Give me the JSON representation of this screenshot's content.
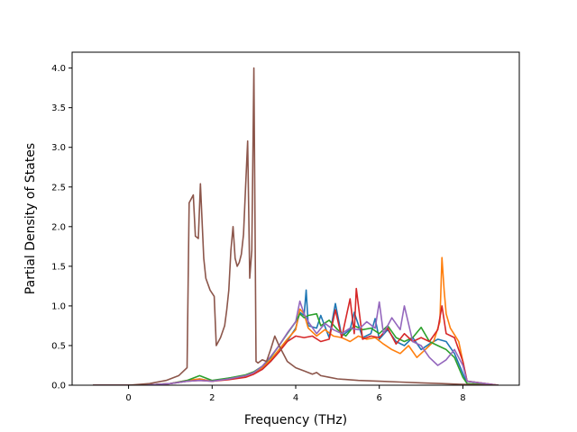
{
  "chart_data": {
    "type": "line",
    "title": "",
    "xlabel": "Frequency (THz)",
    "ylabel": "Partial Density of States",
    "xlim": [
      -1.35,
      9.35
    ],
    "ylim": [
      0,
      4.2
    ],
    "grid": false,
    "legend": "none",
    "xticks": [
      0,
      2,
      4,
      6,
      8
    ],
    "xtick_labels": [
      "0",
      "2",
      "4",
      "6",
      "8"
    ],
    "yticks": [
      0,
      0.5,
      1.0,
      1.5,
      2.0,
      2.5,
      3.0,
      3.5,
      4.0
    ],
    "ytick_labels": [
      "0.0",
      "0.5",
      "1.0",
      "1.5",
      "2.0",
      "2.5",
      "3.0",
      "3.5",
      "4.0"
    ],
    "series": [
      {
        "color": "#1f77b4",
        "points": [
          [
            -0.85,
            0
          ],
          [
            0.4,
            0
          ],
          [
            1.0,
            0.02
          ],
          [
            1.4,
            0.05
          ],
          [
            1.7,
            0.08
          ],
          [
            2.0,
            0.05
          ],
          [
            2.4,
            0.09
          ],
          [
            2.8,
            0.12
          ],
          [
            3.0,
            0.16
          ],
          [
            3.2,
            0.2
          ],
          [
            3.4,
            0.3
          ],
          [
            3.6,
            0.42
          ],
          [
            3.8,
            0.56
          ],
          [
            4.0,
            0.72
          ],
          [
            4.1,
            0.92
          ],
          [
            4.2,
            0.88
          ],
          [
            4.25,
            1.2
          ],
          [
            4.3,
            0.75
          ],
          [
            4.5,
            0.72
          ],
          [
            4.6,
            0.88
          ],
          [
            4.8,
            0.6
          ],
          [
            4.95,
            1.03
          ],
          [
            5.1,
            0.62
          ],
          [
            5.3,
            0.7
          ],
          [
            5.4,
            0.92
          ],
          [
            5.6,
            0.6
          ],
          [
            5.8,
            0.65
          ],
          [
            5.9,
            0.84
          ],
          [
            6.0,
            0.58
          ],
          [
            6.2,
            0.7
          ],
          [
            6.4,
            0.55
          ],
          [
            6.6,
            0.5
          ],
          [
            6.8,
            0.6
          ],
          [
            7.0,
            0.45
          ],
          [
            7.2,
            0.52
          ],
          [
            7.4,
            0.58
          ],
          [
            7.6,
            0.55
          ],
          [
            7.8,
            0.4
          ],
          [
            8.0,
            0.15
          ],
          [
            8.1,
            0.02
          ],
          [
            8.85,
            0
          ]
        ]
      },
      {
        "color": "#ff7f0e",
        "points": [
          [
            -0.85,
            0
          ],
          [
            0.4,
            0
          ],
          [
            1.0,
            0.02
          ],
          [
            1.4,
            0.06
          ],
          [
            1.7,
            0.08
          ],
          [
            2.0,
            0.05
          ],
          [
            2.4,
            0.08
          ],
          [
            2.8,
            0.12
          ],
          [
            3.0,
            0.16
          ],
          [
            3.2,
            0.22
          ],
          [
            3.4,
            0.32
          ],
          [
            3.6,
            0.45
          ],
          [
            3.8,
            0.58
          ],
          [
            4.0,
            0.7
          ],
          [
            4.1,
            0.96
          ],
          [
            4.2,
            0.9
          ],
          [
            4.3,
            0.72
          ],
          [
            4.5,
            0.62
          ],
          [
            4.7,
            0.7
          ],
          [
            4.9,
            0.62
          ],
          [
            5.1,
            0.6
          ],
          [
            5.3,
            0.55
          ],
          [
            5.5,
            0.62
          ],
          [
            5.7,
            0.58
          ],
          [
            5.9,
            0.6
          ],
          [
            6.1,
            0.52
          ],
          [
            6.3,
            0.45
          ],
          [
            6.5,
            0.4
          ],
          [
            6.7,
            0.5
          ],
          [
            6.9,
            0.35
          ],
          [
            7.1,
            0.45
          ],
          [
            7.3,
            0.55
          ],
          [
            7.45,
            0.8
          ],
          [
            7.5,
            1.61
          ],
          [
            7.55,
            1.2
          ],
          [
            7.6,
            0.9
          ],
          [
            7.7,
            0.72
          ],
          [
            7.9,
            0.55
          ],
          [
            8.0,
            0.3
          ],
          [
            8.1,
            0.05
          ],
          [
            8.85,
            0
          ]
        ]
      },
      {
        "color": "#2ca02c",
        "points": [
          [
            -0.85,
            0
          ],
          [
            0.4,
            0
          ],
          [
            1.0,
            0.02
          ],
          [
            1.4,
            0.06
          ],
          [
            1.7,
            0.12
          ],
          [
            2.0,
            0.06
          ],
          [
            2.4,
            0.09
          ],
          [
            2.8,
            0.13
          ],
          [
            3.0,
            0.17
          ],
          [
            3.2,
            0.24
          ],
          [
            3.4,
            0.35
          ],
          [
            3.6,
            0.5
          ],
          [
            3.8,
            0.65
          ],
          [
            4.0,
            0.8
          ],
          [
            4.1,
            0.9
          ],
          [
            4.2,
            0.85
          ],
          [
            4.3,
            0.88
          ],
          [
            4.5,
            0.9
          ],
          [
            4.6,
            0.75
          ],
          [
            4.8,
            0.82
          ],
          [
            5.0,
            0.7
          ],
          [
            5.2,
            0.62
          ],
          [
            5.4,
            0.75
          ],
          [
            5.6,
            0.7
          ],
          [
            5.8,
            0.72
          ],
          [
            6.0,
            0.65
          ],
          [
            6.2,
            0.75
          ],
          [
            6.4,
            0.6
          ],
          [
            6.6,
            0.55
          ],
          [
            6.8,
            0.6
          ],
          [
            7.0,
            0.73
          ],
          [
            7.2,
            0.55
          ],
          [
            7.4,
            0.5
          ],
          [
            7.6,
            0.45
          ],
          [
            7.8,
            0.35
          ],
          [
            8.0,
            0.1
          ],
          [
            8.1,
            0.02
          ],
          [
            8.85,
            0
          ]
        ]
      },
      {
        "color": "#d62728",
        "points": [
          [
            -0.85,
            0
          ],
          [
            0.4,
            0
          ],
          [
            1.0,
            0.02
          ],
          [
            1.4,
            0.05
          ],
          [
            1.7,
            0.06
          ],
          [
            2.0,
            0.05
          ],
          [
            2.4,
            0.07
          ],
          [
            2.8,
            0.1
          ],
          [
            3.0,
            0.14
          ],
          [
            3.2,
            0.2
          ],
          [
            3.4,
            0.3
          ],
          [
            3.6,
            0.42
          ],
          [
            3.8,
            0.55
          ],
          [
            4.0,
            0.62
          ],
          [
            4.2,
            0.6
          ],
          [
            4.4,
            0.62
          ],
          [
            4.6,
            0.55
          ],
          [
            4.8,
            0.58
          ],
          [
            4.95,
            0.95
          ],
          [
            5.1,
            0.6
          ],
          [
            5.3,
            1.09
          ],
          [
            5.4,
            0.65
          ],
          [
            5.45,
            1.22
          ],
          [
            5.6,
            0.58
          ],
          [
            5.8,
            0.62
          ],
          [
            6.0,
            0.6
          ],
          [
            6.2,
            0.72
          ],
          [
            6.4,
            0.52
          ],
          [
            6.6,
            0.65
          ],
          [
            6.8,
            0.55
          ],
          [
            7.0,
            0.6
          ],
          [
            7.2,
            0.55
          ],
          [
            7.4,
            0.7
          ],
          [
            7.5,
            1.0
          ],
          [
            7.6,
            0.65
          ],
          [
            7.8,
            0.6
          ],
          [
            8.0,
            0.3
          ],
          [
            8.1,
            0.05
          ],
          [
            8.85,
            0
          ]
        ]
      },
      {
        "color": "#9467bd",
        "points": [
          [
            -0.85,
            0
          ],
          [
            0.4,
            0
          ],
          [
            1.0,
            0.02
          ],
          [
            1.4,
            0.05
          ],
          [
            1.7,
            0.06
          ],
          [
            2.0,
            0.05
          ],
          [
            2.4,
            0.08
          ],
          [
            2.8,
            0.12
          ],
          [
            3.0,
            0.16
          ],
          [
            3.2,
            0.24
          ],
          [
            3.4,
            0.36
          ],
          [
            3.6,
            0.5
          ],
          [
            3.8,
            0.66
          ],
          [
            4.0,
            0.8
          ],
          [
            4.1,
            1.06
          ],
          [
            4.2,
            0.9
          ],
          [
            4.3,
            0.8
          ],
          [
            4.5,
            0.65
          ],
          [
            4.7,
            0.78
          ],
          [
            4.9,
            0.7
          ],
          [
            5.1,
            0.65
          ],
          [
            5.3,
            0.72
          ],
          [
            5.5,
            0.7
          ],
          [
            5.7,
            0.8
          ],
          [
            5.9,
            0.72
          ],
          [
            6.0,
            1.05
          ],
          [
            6.1,
            0.65
          ],
          [
            6.3,
            0.85
          ],
          [
            6.5,
            0.7
          ],
          [
            6.6,
            1.0
          ],
          [
            6.8,
            0.55
          ],
          [
            7.0,
            0.5
          ],
          [
            7.2,
            0.35
          ],
          [
            7.4,
            0.25
          ],
          [
            7.6,
            0.32
          ],
          [
            7.8,
            0.45
          ],
          [
            8.0,
            0.25
          ],
          [
            8.1,
            0.05
          ],
          [
            8.85,
            0
          ]
        ]
      },
      {
        "color": "#8c564b",
        "points": [
          [
            -0.85,
            0
          ],
          [
            0.0,
            0
          ],
          [
            0.5,
            0.02
          ],
          [
            0.9,
            0.06
          ],
          [
            1.2,
            0.12
          ],
          [
            1.4,
            0.22
          ],
          [
            1.45,
            2.3
          ],
          [
            1.55,
            2.4
          ],
          [
            1.6,
            1.88
          ],
          [
            1.67,
            1.85
          ],
          [
            1.72,
            2.54
          ],
          [
            1.8,
            1.6
          ],
          [
            1.85,
            1.35
          ],
          [
            1.95,
            1.2
          ],
          [
            2.05,
            1.12
          ],
          [
            2.1,
            0.5
          ],
          [
            2.2,
            0.6
          ],
          [
            2.3,
            0.75
          ],
          [
            2.35,
            0.95
          ],
          [
            2.4,
            1.2
          ],
          [
            2.45,
            1.7
          ],
          [
            2.5,
            2.0
          ],
          [
            2.55,
            1.6
          ],
          [
            2.6,
            1.5
          ],
          [
            2.65,
            1.55
          ],
          [
            2.7,
            1.65
          ],
          [
            2.75,
            1.9
          ],
          [
            2.8,
            2.5
          ],
          [
            2.85,
            3.08
          ],
          [
            2.9,
            1.35
          ],
          [
            2.95,
            1.7
          ],
          [
            3.0,
            4.0
          ],
          [
            3.05,
            0.3
          ],
          [
            3.1,
            0.28
          ],
          [
            3.2,
            0.32
          ],
          [
            3.3,
            0.3
          ],
          [
            3.4,
            0.45
          ],
          [
            3.5,
            0.62
          ],
          [
            3.6,
            0.5
          ],
          [
            3.7,
            0.4
          ],
          [
            3.8,
            0.3
          ],
          [
            4.0,
            0.22
          ],
          [
            4.2,
            0.18
          ],
          [
            4.4,
            0.14
          ],
          [
            4.5,
            0.16
          ],
          [
            4.6,
            0.12
          ],
          [
            4.8,
            0.1
          ],
          [
            5.0,
            0.08
          ],
          [
            5.5,
            0.06
          ],
          [
            6.0,
            0.05
          ],
          [
            6.5,
            0.04
          ],
          [
            7.0,
            0.03
          ],
          [
            7.5,
            0.02
          ],
          [
            8.0,
            0.01
          ],
          [
            8.85,
            0
          ]
        ]
      }
    ]
  }
}
